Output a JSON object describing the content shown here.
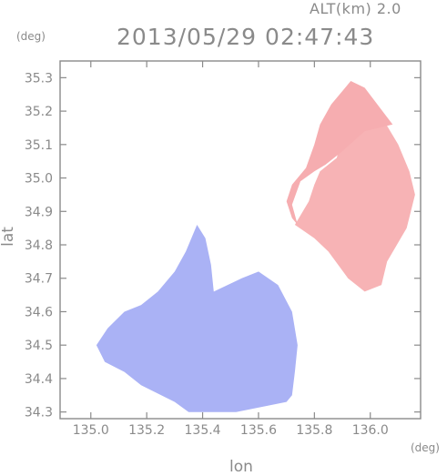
{
  "header": {
    "altitude": "ALT(km) 2.0",
    "timestamp": "2013/05/29 02:47:43"
  },
  "axes": {
    "y_unit": "(deg)",
    "x_unit": "(deg)",
    "xlabel": "lon",
    "ylabel": "lat"
  },
  "chart_data": {
    "type": "heatmap",
    "title": "2013/05/29 02:47:43",
    "xlabel": "lon",
    "ylabel": "lat",
    "xlim": [
      134.89,
      136.18
    ],
    "ylim": [
      34.28,
      35.35
    ],
    "x_ticks": [
      "135.0",
      "135.2",
      "135.4",
      "135.6",
      "135.8",
      "136.0"
    ],
    "x_tick_values": [
      135.0,
      135.2,
      135.4,
      135.6,
      135.8,
      136.0
    ],
    "y_ticks": [
      "34.3",
      "34.4",
      "34.5",
      "34.6",
      "34.7",
      "34.8",
      "34.9",
      "35.0",
      "35.1",
      "35.2",
      "35.3"
    ],
    "y_tick_values": [
      34.3,
      34.4,
      34.5,
      34.6,
      34.7,
      34.8,
      34.9,
      35.0,
      35.1,
      35.2,
      35.3
    ],
    "colors": {
      "approaching": "#aab2f5",
      "receding": "#f7b3b5",
      "neutral": "#ffffff",
      "axis": "#8a8a8a"
    },
    "regions": [
      {
        "name": "receding",
        "color": "#f7b3b5",
        "points": [
          [
            135.73,
            34.86
          ],
          [
            135.78,
            34.93
          ],
          [
            135.8,
            34.98
          ],
          [
            135.82,
            35.02
          ],
          [
            135.88,
            35.06
          ],
          [
            135.9,
            35.12
          ],
          [
            135.98,
            35.2
          ],
          [
            136.05,
            35.17
          ],
          [
            136.1,
            35.1
          ],
          [
            136.14,
            35.02
          ],
          [
            136.16,
            34.95
          ],
          [
            136.13,
            34.85
          ],
          [
            136.06,
            34.75
          ],
          [
            136.04,
            34.68
          ],
          [
            135.98,
            34.66
          ],
          [
            135.92,
            34.7
          ],
          [
            135.85,
            34.78
          ],
          [
            135.8,
            34.82
          ]
        ]
      },
      {
        "name": "receding",
        "color": "#f6adb0",
        "points": [
          [
            135.74,
            34.86
          ],
          [
            135.72,
            34.92
          ],
          [
            135.75,
            34.99
          ],
          [
            135.8,
            35.02
          ],
          [
            135.84,
            35.04
          ],
          [
            135.9,
            35.08
          ],
          [
            135.98,
            35.14
          ],
          [
            136.08,
            35.16
          ],
          [
            135.98,
            35.27
          ],
          [
            135.93,
            35.29
          ],
          [
            135.86,
            35.22
          ],
          [
            135.82,
            35.16
          ],
          [
            135.8,
            35.1
          ],
          [
            135.77,
            35.03
          ],
          [
            135.72,
            34.98
          ],
          [
            135.7,
            34.93
          ],
          [
            135.72,
            34.88
          ]
        ]
      },
      {
        "name": "approaching",
        "color": "#aab2f5",
        "points": [
          [
            135.38,
            34.86
          ],
          [
            135.41,
            34.82
          ],
          [
            135.43,
            34.74
          ],
          [
            135.44,
            34.66
          ],
          [
            135.54,
            34.7
          ],
          [
            135.6,
            34.72
          ],
          [
            135.67,
            34.68
          ],
          [
            135.72,
            34.6
          ],
          [
            135.74,
            34.5
          ],
          [
            135.73,
            34.42
          ],
          [
            135.72,
            34.35
          ],
          [
            135.7,
            34.33
          ],
          [
            135.52,
            34.3
          ],
          [
            135.35,
            34.3
          ],
          [
            135.3,
            34.33
          ],
          [
            135.18,
            34.38
          ],
          [
            135.12,
            34.42
          ],
          [
            135.05,
            34.45
          ],
          [
            135.02,
            34.5
          ],
          [
            135.06,
            34.55
          ],
          [
            135.12,
            34.6
          ],
          [
            135.18,
            34.62
          ],
          [
            135.24,
            34.66
          ],
          [
            135.3,
            34.72
          ],
          [
            135.34,
            34.78
          ]
        ]
      }
    ]
  }
}
